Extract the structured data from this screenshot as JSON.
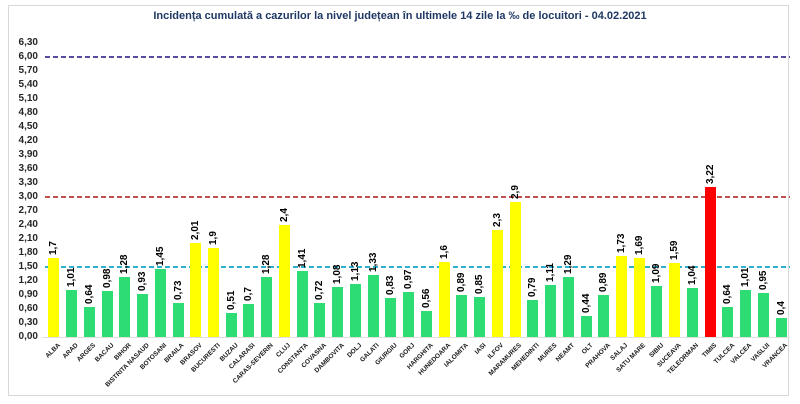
{
  "chart_data": {
    "type": "bar",
    "title": "Incidența cumulată a cazurilor la nivel județean în ultimele 14 zile la ‰ de locuitori - 04.02.2021",
    "title_color": "#1F3864",
    "categories": [
      "ALBA",
      "ARAD",
      "ARGES",
      "BACAU",
      "BIHOR",
      "BISTRITA NASAUD",
      "BOTOSANI",
      "BRAILA",
      "BRASOV",
      "BUCURESTI",
      "BUZAU",
      "CALARASI",
      "CARAS-SEVERIN",
      "CLUJ",
      "CONSTANTA",
      "COVASNA",
      "DAMBOVITA",
      "DOLJ",
      "GALATI",
      "GIURGIU",
      "GORJ",
      "HARGHITA",
      "HUNEDOARA",
      "IALOMITA",
      "IASI",
      "ILFOV",
      "MARAMURES",
      "MEHEDINTI",
      "MURES",
      "NEAMT",
      "OLT",
      "PRAHOVA",
      "SALAJ",
      "SATU MARE",
      "SIBIU",
      "SUCEAVA",
      "TELEORMAN",
      "TIMIS",
      "TULCEA",
      "VALCEA",
      "VASLUI",
      "VRANCEA"
    ],
    "values": [
      1.7,
      1.01,
      0.64,
      0.98,
      1.28,
      0.93,
      1.45,
      0.73,
      2.01,
      1.9,
      0.51,
      0.7,
      1.28,
      2.4,
      1.41,
      0.72,
      1.08,
      1.13,
      1.33,
      0.83,
      0.97,
      0.56,
      1.6,
      0.89,
      0.85,
      2.3,
      2.9,
      0.79,
      1.11,
      1.29,
      0.44,
      0.89,
      1.73,
      1.69,
      1.09,
      1.59,
      1.04,
      3.22,
      0.64,
      1.01,
      0.95,
      0.4
    ],
    "value_labels": [
      "1,7",
      "1,01",
      "0,64",
      "0,98",
      "1,28",
      "0,93",
      "1,45",
      "0,73",
      "2,01",
      "1,9",
      "0,51",
      "0,7",
      "1,28",
      "2,4",
      "1,41",
      "0,72",
      "1,08",
      "1,13",
      "1,33",
      "0,83",
      "0,97",
      "0,56",
      "1,6",
      "0,89",
      "0,85",
      "2,3",
      "2,9",
      "0,79",
      "1,11",
      "1,29",
      "0,44",
      "0,89",
      "1,73",
      "1,69",
      "1,09",
      "1,59",
      "1,04",
      "3,22",
      "0,64",
      "1,01",
      "0,95",
      "0,4"
    ],
    "bar_color_keys": [
      "yellow",
      "green",
      "green",
      "green",
      "green",
      "green",
      "green",
      "green",
      "yellow",
      "yellow",
      "green",
      "green",
      "green",
      "yellow",
      "green",
      "green",
      "green",
      "green",
      "green",
      "green",
      "green",
      "green",
      "yellow",
      "green",
      "green",
      "yellow",
      "yellow",
      "green",
      "green",
      "green",
      "green",
      "green",
      "yellow",
      "yellow",
      "green",
      "yellow",
      "green",
      "red",
      "green",
      "green",
      "green",
      "green"
    ],
    "series_colors": {
      "green": "#2EDC74",
      "yellow": "#FFFF00",
      "red": "#FF0000"
    },
    "ylim": [
      0,
      6.3
    ],
    "ytick_step": 0.3,
    "ytick_labels": [
      "0,00",
      "0,30",
      "0,60",
      "0,90",
      "1,20",
      "1,50",
      "1,80",
      "2,10",
      "2,40",
      "2,70",
      "3,00",
      "3,30",
      "3,60",
      "3,90",
      "4,20",
      "4,50",
      "4,80",
      "5,10",
      "5,40",
      "5,70",
      "6,00",
      "6,30"
    ],
    "thresholds": [
      {
        "value": 6.0,
        "color": "#5A4A9C",
        "name": "threshold-line-6"
      },
      {
        "value": 3.0,
        "color": "#C0504D",
        "name": "threshold-line-3"
      },
      {
        "value": 1.5,
        "color": "#2EB1CE",
        "name": "threshold-line-1-5"
      }
    ],
    "grid": false,
    "legend": null
  }
}
